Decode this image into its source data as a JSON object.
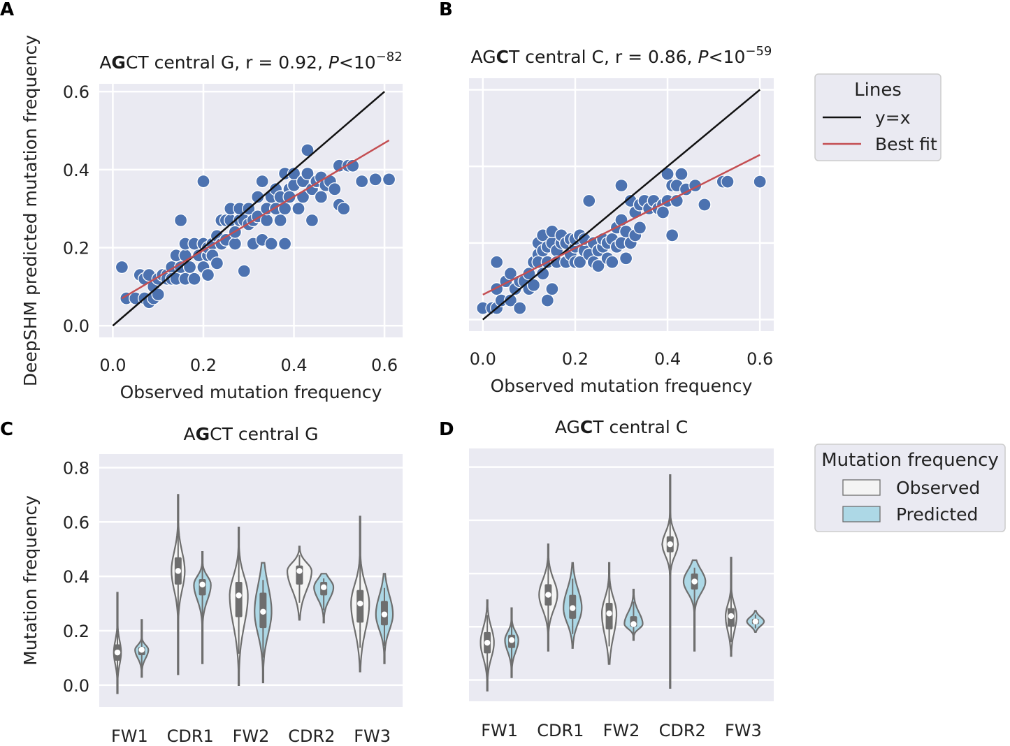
{
  "colors": {
    "panel_bg": "#eaeaf2",
    "grid": "#ffffff",
    "point": "#4c72b0",
    "identity_line": "#111111",
    "fit_line": "#c44e52",
    "observed_fill": "#f4f4f4",
    "predicted_fill": "#add8e6",
    "violin_edge": "#6e6e6e",
    "legend_bg": "#eaeaf2",
    "legend_edge": "#cccccc"
  },
  "panel_labels": [
    "A",
    "B",
    "C",
    "D"
  ],
  "legend_lines": {
    "title": "Lines",
    "items": [
      {
        "label": "y=x",
        "color": "#111111"
      },
      {
        "label": "Best fit",
        "color": "#c44e52"
      }
    ]
  },
  "legend_violin": {
    "title": "Mutation frequency",
    "items": [
      {
        "label": "Observed",
        "color": "#f4f4f4"
      },
      {
        "label": "Predicted",
        "color": "#add8e6"
      }
    ]
  },
  "chart_data": [
    {
      "type": "scatter",
      "panel": "A",
      "title_parts": {
        "pre": "A",
        "bold": "G",
        "post": "CT central G, r = 0.92, ",
        "p": "P",
        "rel": "<10",
        "exp": "−82"
      },
      "xlabel": "Observed mutation frequency",
      "ylabel": "DeepSHM predicted mutation frequency",
      "xlim": [
        -0.03,
        0.64
      ],
      "ylim": [
        -0.03,
        0.62
      ],
      "xticks": [
        0.0,
        0.2,
        0.4,
        0.6
      ],
      "yticks": [
        0.0,
        0.2,
        0.4,
        0.6
      ],
      "xtick_labels": [
        "0.0",
        "0.2",
        "0.4",
        "0.6"
      ],
      "ytick_labels": [
        "0.0",
        "0.2",
        "0.4",
        "0.6"
      ],
      "identity": [
        [
          0.0,
          0.0
        ],
        [
          0.6,
          0.6
        ]
      ],
      "fit": [
        [
          0.02,
          0.07
        ],
        [
          0.61,
          0.475
        ]
      ],
      "points": [
        [
          0.02,
          0.15
        ],
        [
          0.03,
          0.07
        ],
        [
          0.05,
          0.07
        ],
        [
          0.06,
          0.13
        ],
        [
          0.07,
          0.12
        ],
        [
          0.07,
          0.07
        ],
        [
          0.08,
          0.06
        ],
        [
          0.08,
          0.13
        ],
        [
          0.09,
          0.1
        ],
        [
          0.09,
          0.07
        ],
        [
          0.1,
          0.12
        ],
        [
          0.1,
          0.08
        ],
        [
          0.11,
          0.13
        ],
        [
          0.12,
          0.13
        ],
        [
          0.12,
          0.12
        ],
        [
          0.13,
          0.15
        ],
        [
          0.13,
          0.12
        ],
        [
          0.14,
          0.12
        ],
        [
          0.14,
          0.18
        ],
        [
          0.15,
          0.15
        ],
        [
          0.15,
          0.27
        ],
        [
          0.16,
          0.12
        ],
        [
          0.16,
          0.18
        ],
        [
          0.16,
          0.21
        ],
        [
          0.17,
          0.15
        ],
        [
          0.18,
          0.12
        ],
        [
          0.18,
          0.21
        ],
        [
          0.19,
          0.18
        ],
        [
          0.2,
          0.15
        ],
        [
          0.2,
          0.37
        ],
        [
          0.2,
          0.21
        ],
        [
          0.21,
          0.13
        ],
        [
          0.21,
          0.18
        ],
        [
          0.21,
          0.2
        ],
        [
          0.22,
          0.21
        ],
        [
          0.22,
          0.18
        ],
        [
          0.23,
          0.16
        ],
        [
          0.23,
          0.23
        ],
        [
          0.24,
          0.21
        ],
        [
          0.24,
          0.27
        ],
        [
          0.25,
          0.27
        ],
        [
          0.25,
          0.22
        ],
        [
          0.26,
          0.27
        ],
        [
          0.26,
          0.3
        ],
        [
          0.27,
          0.21
        ],
        [
          0.27,
          0.24
        ],
        [
          0.28,
          0.27
        ],
        [
          0.28,
          0.3
        ],
        [
          0.29,
          0.27
        ],
        [
          0.29,
          0.14
        ],
        [
          0.3,
          0.26
        ],
        [
          0.3,
          0.3
        ],
        [
          0.31,
          0.21
        ],
        [
          0.31,
          0.27
        ],
        [
          0.32,
          0.33
        ],
        [
          0.32,
          0.28
        ],
        [
          0.33,
          0.22
        ],
        [
          0.33,
          0.37
        ],
        [
          0.34,
          0.27
        ],
        [
          0.34,
          0.3
        ],
        [
          0.35,
          0.33
        ],
        [
          0.35,
          0.21
        ],
        [
          0.36,
          0.3
        ],
        [
          0.36,
          0.35
        ],
        [
          0.37,
          0.27
        ],
        [
          0.37,
          0.33
        ],
        [
          0.38,
          0.39
        ],
        [
          0.38,
          0.21
        ],
        [
          0.38,
          0.3
        ],
        [
          0.39,
          0.35
        ],
        [
          0.39,
          0.33
        ],
        [
          0.4,
          0.36
        ],
        [
          0.4,
          0.39
        ],
        [
          0.41,
          0.3
        ],
        [
          0.42,
          0.37
        ],
        [
          0.42,
          0.33
        ],
        [
          0.43,
          0.39
        ],
        [
          0.43,
          0.45
        ],
        [
          0.44,
          0.35
        ],
        [
          0.44,
          0.27
        ],
        [
          0.45,
          0.37
        ],
        [
          0.46,
          0.33
        ],
        [
          0.46,
          0.38
        ],
        [
          0.47,
          0.36
        ],
        [
          0.48,
          0.37
        ],
        [
          0.49,
          0.35
        ],
        [
          0.5,
          0.41
        ],
        [
          0.5,
          0.31
        ],
        [
          0.51,
          0.3
        ],
        [
          0.52,
          0.41
        ],
        [
          0.53,
          0.41
        ],
        [
          0.55,
          0.37
        ],
        [
          0.58,
          0.375
        ],
        [
          0.61,
          0.375
        ]
      ]
    },
    {
      "type": "scatter",
      "panel": "B",
      "title_parts": {
        "pre": "AG",
        "bold": "C",
        "post": "T central C, r = 0.86, ",
        "p": "P",
        "rel": "<10",
        "exp": "−59"
      },
      "xlabel": "Observed mutation frequency",
      "ylabel": "",
      "xlim": [
        -0.03,
        0.63
      ],
      "ylim": [
        -0.03,
        0.63
      ],
      "xticks": [
        0.0,
        0.2,
        0.4,
        0.6
      ],
      "yticks": [
        0.0,
        0.2,
        0.4,
        0.6
      ],
      "xtick_labels": [
        "0.0",
        "0.2",
        "0.4",
        "0.6"
      ],
      "ytick_labels": [],
      "identity": [
        [
          0.0,
          0.0
        ],
        [
          0.6,
          0.6
        ]
      ],
      "fit": [
        [
          0.0,
          0.065
        ],
        [
          0.6,
          0.43
        ]
      ],
      "points": [
        [
          0.0,
          0.03
        ],
        [
          0.02,
          0.03
        ],
        [
          0.03,
          0.03
        ],
        [
          0.03,
          0.15
        ],
        [
          0.03,
          0.08
        ],
        [
          0.04,
          0.05
        ],
        [
          0.05,
          0.1
        ],
        [
          0.06,
          0.05
        ],
        [
          0.06,
          0.12
        ],
        [
          0.07,
          0.08
        ],
        [
          0.08,
          0.03
        ],
        [
          0.08,
          0.1
        ],
        [
          0.09,
          0.1
        ],
        [
          0.1,
          0.08
        ],
        [
          0.1,
          0.12
        ],
        [
          0.11,
          0.09
        ],
        [
          0.11,
          0.15
        ],
        [
          0.12,
          0.17
        ],
        [
          0.12,
          0.15
        ],
        [
          0.12,
          0.2
        ],
        [
          0.13,
          0.12
        ],
        [
          0.13,
          0.18
        ],
        [
          0.13,
          0.22
        ],
        [
          0.14,
          0.15
        ],
        [
          0.14,
          0.19
        ],
        [
          0.14,
          0.05
        ],
        [
          0.15,
          0.08
        ],
        [
          0.15,
          0.2
        ],
        [
          0.15,
          0.23
        ],
        [
          0.16,
          0.18
        ],
        [
          0.16,
          0.15
        ],
        [
          0.17,
          0.2
        ],
        [
          0.17,
          0.22
        ],
        [
          0.18,
          0.15
        ],
        [
          0.18,
          0.2
        ],
        [
          0.19,
          0.17
        ],
        [
          0.19,
          0.21
        ],
        [
          0.2,
          0.15
        ],
        [
          0.2,
          0.19
        ],
        [
          0.2,
          0.21
        ],
        [
          0.21,
          0.15
        ],
        [
          0.21,
          0.22
        ],
        [
          0.22,
          0.18
        ],
        [
          0.22,
          0.21
        ],
        [
          0.23,
          0.17
        ],
        [
          0.23,
          0.31
        ],
        [
          0.24,
          0.2
        ],
        [
          0.24,
          0.15
        ],
        [
          0.25,
          0.14
        ],
        [
          0.25,
          0.18
        ],
        [
          0.26,
          0.19
        ],
        [
          0.26,
          0.21
        ],
        [
          0.27,
          0.16
        ],
        [
          0.27,
          0.2
        ],
        [
          0.28,
          0.21
        ],
        [
          0.28,
          0.15
        ],
        [
          0.29,
          0.19
        ],
        [
          0.29,
          0.24
        ],
        [
          0.3,
          0.26
        ],
        [
          0.3,
          0.35
        ],
        [
          0.3,
          0.2
        ],
        [
          0.31,
          0.16
        ],
        [
          0.31,
          0.23
        ],
        [
          0.32,
          0.2
        ],
        [
          0.32,
          0.31
        ],
        [
          0.33,
          0.22
        ],
        [
          0.33,
          0.28
        ],
        [
          0.34,
          0.3
        ],
        [
          0.34,
          0.24
        ],
        [
          0.35,
          0.31
        ],
        [
          0.36,
          0.29
        ],
        [
          0.37,
          0.31
        ],
        [
          0.38,
          0.29
        ],
        [
          0.39,
          0.3
        ],
        [
          0.39,
          0.28
        ],
        [
          0.4,
          0.38
        ],
        [
          0.4,
          0.31
        ],
        [
          0.41,
          0.22
        ],
        [
          0.41,
          0.35
        ],
        [
          0.42,
          0.31
        ],
        [
          0.42,
          0.35
        ],
        [
          0.43,
          0.38
        ],
        [
          0.44,
          0.34
        ],
        [
          0.46,
          0.35
        ],
        [
          0.48,
          0.3
        ],
        [
          0.52,
          0.36
        ],
        [
          0.53,
          0.36
        ],
        [
          0.6,
          0.36
        ]
      ]
    },
    {
      "type": "violin",
      "panel": "C",
      "title_parts": {
        "pre": "A",
        "bold": "G",
        "post": "CT central G"
      },
      "xlabel": "",
      "ylabel": "Mutation frequency",
      "ylim": [
        -0.08,
        0.85
      ],
      "yticks": [
        0.0,
        0.2,
        0.4,
        0.6,
        0.8
      ],
      "ytick_labels": [
        "0.0",
        "0.2",
        "0.4",
        "0.6",
        "0.8"
      ],
      "categories": [
        "FW1",
        "CDR1",
        "FW2",
        "CDR2",
        "FW3"
      ],
      "series": [
        {
          "name": "Observed",
          "min": [
            -0.03,
            0.04,
            0.0,
            0.24,
            0.05
          ],
          "q1": [
            0.09,
            0.37,
            0.25,
            0.37,
            0.23
          ],
          "median": [
            0.12,
            0.42,
            0.33,
            0.42,
            0.3
          ],
          "q3": [
            0.15,
            0.47,
            0.38,
            0.44,
            0.35
          ],
          "max": [
            0.34,
            0.7,
            0.58,
            0.51,
            0.62
          ],
          "width": [
            0.3,
            0.55,
            0.75,
            1.0,
            0.75
          ]
        },
        {
          "name": "Predicted",
          "min": [
            0.03,
            0.08,
            0.01,
            0.23,
            0.08
          ],
          "q1": [
            0.11,
            0.33,
            0.21,
            0.33,
            0.22
          ],
          "median": [
            0.13,
            0.37,
            0.27,
            0.36,
            0.26
          ],
          "q3": [
            0.14,
            0.39,
            0.34,
            0.38,
            0.31
          ],
          "max": [
            0.24,
            0.49,
            0.45,
            0.41,
            0.41
          ],
          "width": [
            0.55,
            0.7,
            0.7,
            0.8,
            0.7
          ]
        }
      ]
    },
    {
      "type": "violin",
      "panel": "D",
      "title_parts": {
        "pre": "AG",
        "bold": "C",
        "post": "T central C"
      },
      "xlabel": "",
      "ylabel": "",
      "ylim": [
        -0.08,
        0.87
      ],
      "yticks": [
        0.0,
        0.2,
        0.4,
        0.6,
        0.8
      ],
      "ytick_labels": [],
      "categories": [
        "FW1",
        "CDR1",
        "FW2",
        "CDR2",
        "FW3"
      ],
      "series": [
        {
          "name": "Observed",
          "min": [
            -0.04,
            0.11,
            0.06,
            -0.03,
            0.09
          ],
          "q1": [
            0.1,
            0.28,
            0.19,
            0.48,
            0.2
          ],
          "median": [
            0.14,
            0.32,
            0.25,
            0.51,
            0.24
          ],
          "q3": [
            0.18,
            0.36,
            0.29,
            0.54,
            0.27
          ],
          "max": [
            0.3,
            0.51,
            0.44,
            0.77,
            0.46
          ],
          "width": [
            0.55,
            0.75,
            0.6,
            0.65,
            0.45
          ]
        },
        {
          "name": "Predicted",
          "min": [
            0.01,
            0.12,
            0.15,
            0.11,
            0.18
          ],
          "q1": [
            0.12,
            0.23,
            0.2,
            0.34,
            0.21
          ],
          "median": [
            0.15,
            0.27,
            0.21,
            0.37,
            0.22
          ],
          "q3": [
            0.17,
            0.32,
            0.24,
            0.4,
            0.23
          ],
          "max": [
            0.27,
            0.44,
            0.34,
            0.45,
            0.26
          ],
          "width": [
            0.55,
            0.75,
            0.75,
            0.9,
            0.7
          ]
        }
      ]
    }
  ]
}
